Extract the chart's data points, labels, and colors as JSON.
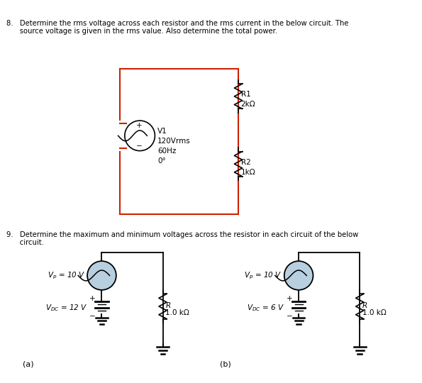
{
  "title8_line1": "8.   Determine the rms voltage across each resistor and the rms current in the below circuit. The",
  "title8_line2": "      source voltage is given in the rms value. Also determine the total power.",
  "title9_line1": "9.   Determine the maximum and minimum voltages across the resistor in each circuit of the below",
  "title9_line2": "      circuit.",
  "label_a": "(a)",
  "label_b": "(b)",
  "bg_color": "#ffffff",
  "text_color": "#000000",
  "red": "#cc2200",
  "black": "#000000",
  "gray_fill": "#b8cfe0",
  "src1_label": "V1\n120Vrms\n60Hz\n0°",
  "r1_label": "R1\n2kΩ",
  "r2_label": "R2\n1kΩ",
  "vp_label_a": "V_p = 10 V",
  "vdc_label_a": "V_DC = 12 V",
  "vp_label_b": "V_p = 10 V",
  "vdc_label_b": "V_DC = 6 V",
  "r_label": "R\n1.0 kΩ"
}
